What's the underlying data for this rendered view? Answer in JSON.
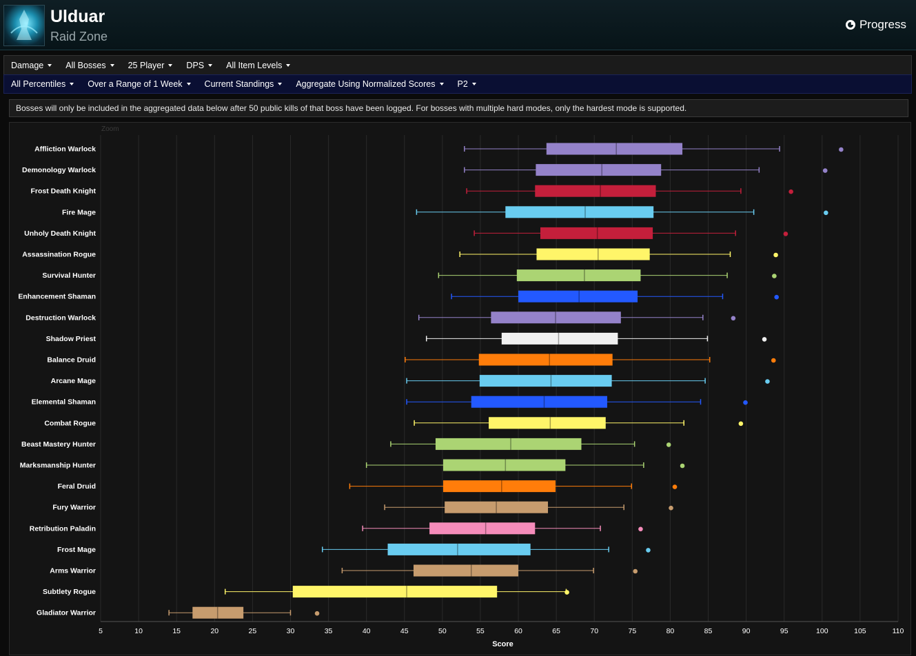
{
  "header": {
    "title": "Ulduar",
    "subtitle": "Raid Zone",
    "progress_label": "Progress"
  },
  "filters_primary": [
    "Damage",
    "All Bosses",
    "25 Player",
    "DPS",
    "All Item Levels"
  ],
  "filters_secondary": [
    "All Percentiles",
    "Over a Range of 1 Week",
    "Current Standings",
    "Aggregate Using Normalized Scores",
    "P2"
  ],
  "notice": "Bosses will only be included in the aggregated data below after 50 public kills of that boss have been logged. For bosses with multiple hard modes, only the hardest mode is supported.",
  "zoom_label": "Zoom",
  "colors": {
    "warlock": "#9482c9",
    "death_knight": "#c41f3b",
    "mage": "#69ccf0",
    "rogue": "#fff569",
    "hunter": "#abd473",
    "shaman": "#2359ff",
    "priest": "#f0f0f0",
    "druid": "#ff7d0a",
    "warrior": "#c79c6e",
    "paladin": "#f58cba"
  },
  "chart_data": {
    "type": "boxplot",
    "orientation": "horizontal",
    "xlabel": "Score",
    "xlim": [
      5,
      110
    ],
    "xticks": [
      5,
      10,
      15,
      20,
      25,
      30,
      35,
      40,
      45,
      50,
      55,
      60,
      65,
      70,
      75,
      80,
      85,
      90,
      95,
      100,
      105,
      110
    ],
    "grid": true,
    "series": [
      {
        "name": "Affliction Warlock",
        "color": "#9482c9",
        "min": 52.9,
        "q1": 63.7,
        "median": 72.9,
        "q3": 81.6,
        "max": 94.4,
        "outlier": 102.5
      },
      {
        "name": "Demonology Warlock",
        "color": "#9482c9",
        "min": 52.9,
        "q1": 62.3,
        "median": 71.0,
        "q3": 78.8,
        "max": 91.7,
        "outlier": 100.4
      },
      {
        "name": "Frost Death Knight",
        "color": "#c41f3b",
        "min": 53.2,
        "q1": 62.2,
        "median": 70.8,
        "q3": 78.1,
        "max": 89.3,
        "outlier": 95.9
      },
      {
        "name": "Fire Mage",
        "color": "#69ccf0",
        "min": 46.6,
        "q1": 58.3,
        "median": 68.8,
        "q3": 77.8,
        "max": 91.0,
        "outlier": 100.5
      },
      {
        "name": "Unholy Death Knight",
        "color": "#c41f3b",
        "min": 54.2,
        "q1": 62.9,
        "median": 70.4,
        "q3": 77.7,
        "max": 88.6,
        "outlier": 95.2
      },
      {
        "name": "Assassination Rogue",
        "color": "#fff569",
        "min": 52.3,
        "q1": 62.4,
        "median": 70.5,
        "q3": 77.3,
        "max": 87.9,
        "outlier": 93.9
      },
      {
        "name": "Survival Hunter",
        "color": "#abd473",
        "min": 49.5,
        "q1": 59.8,
        "median": 68.7,
        "q3": 76.1,
        "max": 87.5,
        "outlier": 93.7
      },
      {
        "name": "Enhancement Shaman",
        "color": "#2359ff",
        "min": 51.2,
        "q1": 60.0,
        "median": 68.0,
        "q3": 75.7,
        "max": 86.9,
        "outlier": 94.0
      },
      {
        "name": "Destruction Warlock",
        "color": "#9482c9",
        "min": 46.9,
        "q1": 56.4,
        "median": 64.9,
        "q3": 73.5,
        "max": 84.3,
        "outlier": 88.3
      },
      {
        "name": "Shadow Priest",
        "color": "#f0f0f0",
        "min": 47.9,
        "q1": 57.8,
        "median": 65.3,
        "q3": 73.1,
        "max": 84.9,
        "outlier": 92.4
      },
      {
        "name": "Balance Druid",
        "color": "#ff7d0a",
        "min": 45.1,
        "q1": 54.8,
        "median": 64.1,
        "q3": 72.4,
        "max": 85.2,
        "outlier": 93.6
      },
      {
        "name": "Arcane Mage",
        "color": "#69ccf0",
        "min": 45.3,
        "q1": 54.9,
        "median": 64.3,
        "q3": 72.3,
        "max": 84.6,
        "outlier": 92.8
      },
      {
        "name": "Elemental Shaman",
        "color": "#2359ff",
        "min": 45.3,
        "q1": 53.8,
        "median": 63.4,
        "q3": 71.7,
        "max": 84.0,
        "outlier": 89.9
      },
      {
        "name": "Combat Rogue",
        "color": "#fff569",
        "min": 46.3,
        "q1": 56.1,
        "median": 64.2,
        "q3": 71.5,
        "max": 81.8,
        "outlier": 89.3
      },
      {
        "name": "Beast Mastery Hunter",
        "color": "#abd473",
        "min": 43.2,
        "q1": 49.1,
        "median": 59.0,
        "q3": 68.3,
        "max": 75.3,
        "outlier": 79.8
      },
      {
        "name": "Marksmanship Hunter",
        "color": "#abd473",
        "min": 40.0,
        "q1": 50.1,
        "median": 58.3,
        "q3": 66.2,
        "max": 76.5,
        "outlier": 81.6
      },
      {
        "name": "Feral Druid",
        "color": "#ff7d0a",
        "min": 37.8,
        "q1": 50.1,
        "median": 57.8,
        "q3": 64.9,
        "max": 74.9,
        "outlier": 80.6
      },
      {
        "name": "Fury Warrior",
        "color": "#c79c6e",
        "min": 42.4,
        "q1": 50.3,
        "median": 57.1,
        "q3": 63.9,
        "max": 73.9,
        "outlier": 80.1
      },
      {
        "name": "Retribution Paladin",
        "color": "#f58cba",
        "min": 39.5,
        "q1": 48.3,
        "median": 55.7,
        "q3": 62.2,
        "max": 70.8,
        "outlier": 76.1
      },
      {
        "name": "Frost Mage",
        "color": "#69ccf0",
        "min": 34.2,
        "q1": 42.8,
        "median": 52.0,
        "q3": 61.6,
        "max": 71.9,
        "outlier": 77.1
      },
      {
        "name": "Arms Warrior",
        "color": "#c79c6e",
        "min": 36.8,
        "q1": 46.2,
        "median": 53.8,
        "q3": 60.0,
        "max": 69.9,
        "outlier": 75.4
      },
      {
        "name": "Subtlety Rogue",
        "color": "#fff569",
        "min": 21.4,
        "q1": 30.3,
        "median": 45.3,
        "q3": 57.2,
        "max": 66.3,
        "outlier": 66.4
      },
      {
        "name": "Gladiator Warrior",
        "color": "#c79c6e",
        "min": 14.0,
        "q1": 17.1,
        "median": 20.4,
        "q3": 23.8,
        "max": 30.0,
        "outlier": 33.5
      }
    ]
  }
}
